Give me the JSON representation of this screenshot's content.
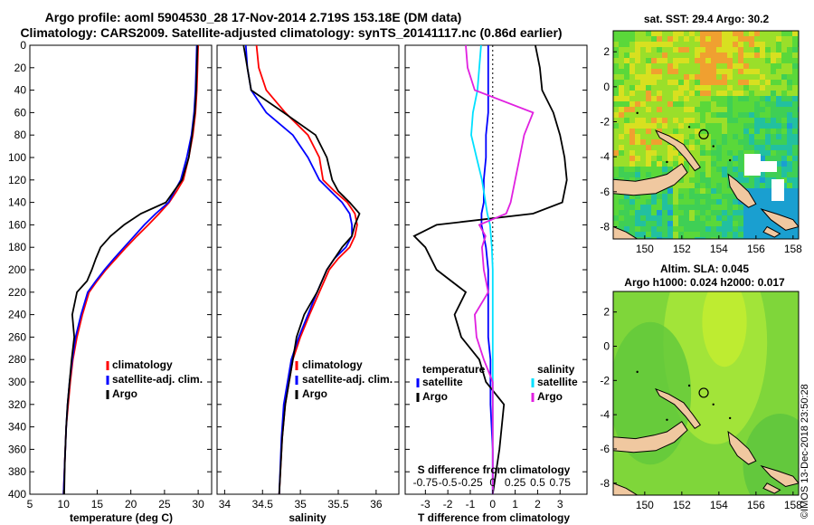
{
  "header": {
    "title_line1": "Argo profile: aoml 5904530_28 17-Nov-2014 2.719S 153.18E (DM data)",
    "title_line2": "Climatology: CARS2009. Satellite-adjusted climatology: synTS_20141117.nc (0.86d earlier)"
  },
  "colors": {
    "climatology": "#ff0000",
    "satellite": "#0000ff",
    "argo": "#000000",
    "sat_s": "#00e0ff",
    "clim_s": "#e020e0"
  },
  "chart_data": [
    {
      "type": "line",
      "name": "temperature-profile",
      "xlabel": "temperature (deg C)",
      "ylabel": "",
      "xlim": [
        5,
        32
      ],
      "ylim": [
        400,
        0
      ],
      "xticks": [
        5,
        10,
        15,
        20,
        25,
        30
      ],
      "yticks": [
        0,
        20,
        40,
        60,
        80,
        100,
        120,
        140,
        160,
        180,
        200,
        220,
        240,
        260,
        280,
        300,
        320,
        340,
        360,
        380,
        400
      ],
      "legend": [
        {
          "label": "climatology",
          "color": "#ff0000"
        },
        {
          "label": "satellite-adj. clim.",
          "color": "#0000ff"
        },
        {
          "label": "Argo",
          "color": "#000000"
        }
      ],
      "series": [
        {
          "name": "climatology",
          "color": "#ff0000",
          "x": [
            30.0,
            29.9,
            29.8,
            29.6,
            29.2,
            28.6,
            27.8,
            26.8,
            25.7,
            24.2,
            22.6,
            20.9,
            19.3,
            17.8,
            16.3,
            15.0,
            13.8,
            12.8,
            12.0,
            11.4,
            11.0,
            10.7,
            10.4,
            10.2,
            10.0
          ],
          "y": [
            0,
            20,
            40,
            60,
            80,
            100,
            120,
            130,
            140,
            150,
            160,
            170,
            180,
            190,
            200,
            210,
            220,
            240,
            260,
            280,
            300,
            320,
            340,
            370,
            400
          ]
        },
        {
          "name": "satellite-adj. clim.",
          "color": "#0000ff",
          "x": [
            29.8,
            29.7,
            29.6,
            29.4,
            29.0,
            28.3,
            27.4,
            26.5,
            25.6,
            23.7,
            22.0,
            20.5,
            19.0,
            17.5,
            16.1,
            14.8,
            13.6,
            12.6,
            11.8,
            11.3,
            10.9,
            10.6,
            10.4,
            10.2,
            10.0
          ],
          "y": [
            0,
            20,
            40,
            60,
            80,
            100,
            120,
            130,
            140,
            150,
            160,
            170,
            180,
            190,
            200,
            210,
            220,
            240,
            260,
            280,
            300,
            320,
            340,
            370,
            400
          ]
        },
        {
          "name": "Argo",
          "color": "#000000",
          "x": [
            29.9,
            29.8,
            29.7,
            29.5,
            29.1,
            28.6,
            27.6,
            26.4,
            25.2,
            21.5,
            19.0,
            17.0,
            15.5,
            14.8,
            14.2,
            13.5,
            12.0,
            11.3,
            11.6,
            11.2,
            10.9,
            10.6,
            10.4,
            10.2,
            10.1
          ],
          "y": [
            0,
            20,
            40,
            60,
            80,
            100,
            120,
            130,
            140,
            150,
            160,
            170,
            180,
            190,
            200,
            210,
            220,
            240,
            260,
            280,
            300,
            320,
            340,
            370,
            400
          ]
        }
      ]
    },
    {
      "type": "line",
      "name": "salinity-profile",
      "xlabel": "salinity",
      "ylabel": "",
      "xlim": [
        33.9,
        36.3
      ],
      "ylim": [
        400,
        0
      ],
      "xticks": [
        34,
        34.5,
        35,
        35.5,
        36
      ],
      "legend": [
        {
          "label": "climatology",
          "color": "#ff0000"
        },
        {
          "label": "satellite-adj. clim.",
          "color": "#0000ff"
        },
        {
          "label": "Argo",
          "color": "#000000"
        }
      ],
      "series": [
        {
          "name": "climatology",
          "color": "#ff0000",
          "x": [
            34.42,
            34.45,
            34.55,
            34.8,
            35.1,
            35.25,
            35.3,
            35.45,
            35.62,
            35.72,
            35.75,
            35.72,
            35.65,
            35.5,
            35.38,
            35.25,
            35.12,
            35.0,
            34.9,
            34.85,
            34.8,
            34.76,
            34.72
          ],
          "y": [
            0,
            20,
            40,
            60,
            80,
            100,
            120,
            130,
            140,
            150,
            160,
            170,
            180,
            190,
            200,
            220,
            240,
            260,
            280,
            300,
            320,
            350,
            400
          ]
        },
        {
          "name": "satellite-adj. clim.",
          "color": "#0000ff",
          "x": [
            34.28,
            34.3,
            34.35,
            34.55,
            34.9,
            35.1,
            35.25,
            35.4,
            35.55,
            35.65,
            35.68,
            35.68,
            35.6,
            35.45,
            35.35,
            35.22,
            35.1,
            34.98,
            34.88,
            34.83,
            34.78,
            34.75,
            34.72
          ],
          "y": [
            0,
            20,
            40,
            60,
            80,
            100,
            120,
            130,
            140,
            150,
            160,
            170,
            180,
            190,
            200,
            220,
            240,
            260,
            280,
            300,
            320,
            350,
            400
          ]
        },
        {
          "name": "Argo",
          "color": "#000000",
          "x": [
            34.25,
            34.3,
            34.35,
            34.78,
            35.2,
            35.35,
            35.42,
            35.5,
            35.65,
            35.78,
            35.72,
            35.68,
            35.55,
            35.45,
            35.35,
            35.22,
            35.05,
            34.95,
            34.9,
            34.85,
            34.8,
            34.76,
            34.72
          ],
          "y": [
            0,
            20,
            40,
            60,
            80,
            100,
            120,
            130,
            140,
            150,
            160,
            170,
            180,
            190,
            200,
            220,
            240,
            260,
            280,
            300,
            320,
            350,
            400
          ]
        }
      ]
    },
    {
      "type": "line",
      "name": "difference-profile",
      "xlabel": "T difference from climatology",
      "xlabel_top": "S difference from climatology",
      "xlim": [
        -3.9,
        4.2
      ],
      "ylim": [
        400,
        0
      ],
      "xticks_T": [
        -3,
        -2,
        -1,
        0,
        1,
        2,
        3
      ],
      "xticks_S": [
        -0.75,
        -0.5,
        -0.25,
        0,
        0.25,
        0.5,
        0.75
      ],
      "legend_left_title": "temperature",
      "legend_right_title": "salinity",
      "legend": [
        {
          "label": "satellite",
          "color": "#0000ff",
          "side": "temperature"
        },
        {
          "label": "Argo",
          "color": "#000000",
          "side": "temperature"
        },
        {
          "label": "satellite",
          "color": "#00e0ff",
          "side": "salinity"
        },
        {
          "label": "Argo",
          "color": "#e020e0",
          "side": "salinity"
        }
      ],
      "series": [
        {
          "name": "temperature satellite",
          "color": "#0000ff",
          "x": [
            -0.2,
            -0.2,
            -0.2,
            -0.2,
            -0.3,
            -0.3,
            -0.4,
            -0.4,
            -0.5,
            -0.5,
            -0.4,
            -0.3,
            -0.2,
            -0.2,
            -0.2,
            -0.2,
            -0.1,
            -0.1,
            -0.1,
            0.0,
            0.0
          ],
          "y": [
            0,
            20,
            40,
            60,
            80,
            100,
            120,
            140,
            150,
            160,
            170,
            180,
            200,
            220,
            240,
            260,
            280,
            300,
            320,
            360,
            400
          ]
        },
        {
          "name": "temperature Argo",
          "color": "#000000",
          "x": [
            1.9,
            2.1,
            2.2,
            2.7,
            3.0,
            3.2,
            3.3,
            3.1,
            1.8,
            -2.5,
            -3.5,
            -3.0,
            -2.5,
            -1.2,
            -1.7,
            -1.4,
            -0.6,
            -0.3,
            0.5,
            0.3,
            0.0
          ],
          "y": [
            0,
            20,
            40,
            60,
            80,
            100,
            120,
            140,
            150,
            160,
            170,
            180,
            200,
            220,
            240,
            260,
            280,
            300,
            320,
            360,
            400
          ]
        },
        {
          "name": "salinity satellite",
          "color": "#00e0ff",
          "x": [
            -0.13,
            -0.15,
            -0.17,
            -0.22,
            -0.24,
            -0.18,
            -0.12,
            -0.08,
            -0.06,
            -0.03,
            -0.02,
            -0.01,
            0.0,
            0.0,
            0.0,
            0.0,
            0.0,
            0.0,
            0.0,
            0.0,
            0.0
          ],
          "y": [
            0,
            20,
            40,
            60,
            80,
            100,
            120,
            140,
            150,
            160,
            170,
            180,
            200,
            220,
            240,
            260,
            280,
            300,
            320,
            360,
            400
          ]
        },
        {
          "name": "salinity Argo",
          "color": "#e020e0",
          "x": [
            -0.3,
            -0.28,
            -0.2,
            0.45,
            0.35,
            0.3,
            0.25,
            0.2,
            0.15,
            -0.15,
            -0.08,
            -0.12,
            -0.1,
            -0.05,
            -0.2,
            -0.18,
            -0.1,
            0.0,
            0.0,
            0.0,
            0.0
          ],
          "y": [
            0,
            20,
            40,
            60,
            80,
            100,
            120,
            140,
            150,
            160,
            170,
            180,
            200,
            220,
            240,
            260,
            280,
            300,
            320,
            360,
            400
          ]
        }
      ]
    },
    {
      "type": "heatmap",
      "name": "sst-map",
      "title": "sat. SST: 29.4 Argo: 30.2",
      "xlim": [
        148.3,
        158.3
      ],
      "ylim": [
        -8.7,
        3.2
      ],
      "xticks": [
        150,
        152,
        154,
        156,
        158
      ],
      "yticks": [
        2,
        0,
        -2,
        -4,
        -6,
        -8
      ],
      "argo_position": {
        "lon": 153.18,
        "lat": -2.719
      }
    },
    {
      "type": "heatmap",
      "name": "sla-map",
      "title_line1": "Altim. SLA: 0.045",
      "title_line2": "Argo h1000: 0.024 h2000: 0.017",
      "xlim": [
        148.3,
        158.3
      ],
      "ylim": [
        -8.7,
        3.2
      ],
      "xticks": [
        150,
        152,
        154,
        156,
        158
      ],
      "yticks": [
        2,
        0,
        -2,
        -4,
        -6,
        -8
      ],
      "argo_position": {
        "lon": 153.18,
        "lat": -2.719
      }
    }
  ],
  "footer": {
    "stamp": "©IMOS 13-Dec-2018 23:50:28"
  }
}
